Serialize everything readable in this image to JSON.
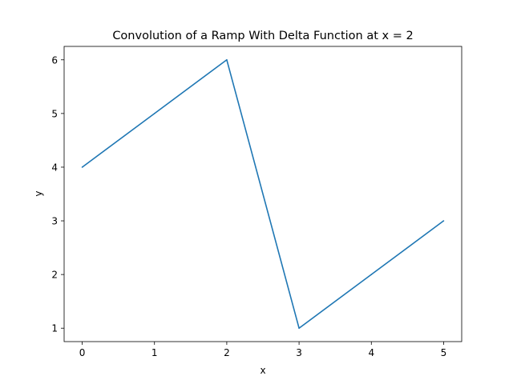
{
  "chart_data": {
    "type": "line",
    "title": "Convolution of a Ramp With Delta Function at x = 2",
    "xlabel": "x",
    "ylabel": "y",
    "x": [
      0,
      1,
      2,
      3,
      4,
      5
    ],
    "series": [
      {
        "values": [
          4,
          5,
          6,
          1,
          2,
          3
        ],
        "color": "#1f77b4"
      }
    ],
    "xlim": [
      -0.25,
      5.25
    ],
    "ylim": [
      0.75,
      6.25
    ],
    "xticks": [
      "0",
      "1",
      "2",
      "3",
      "4",
      "5"
    ],
    "yticks": [
      "1",
      "2",
      "3",
      "4",
      "5",
      "6"
    ],
    "grid": false,
    "legend": "none"
  }
}
